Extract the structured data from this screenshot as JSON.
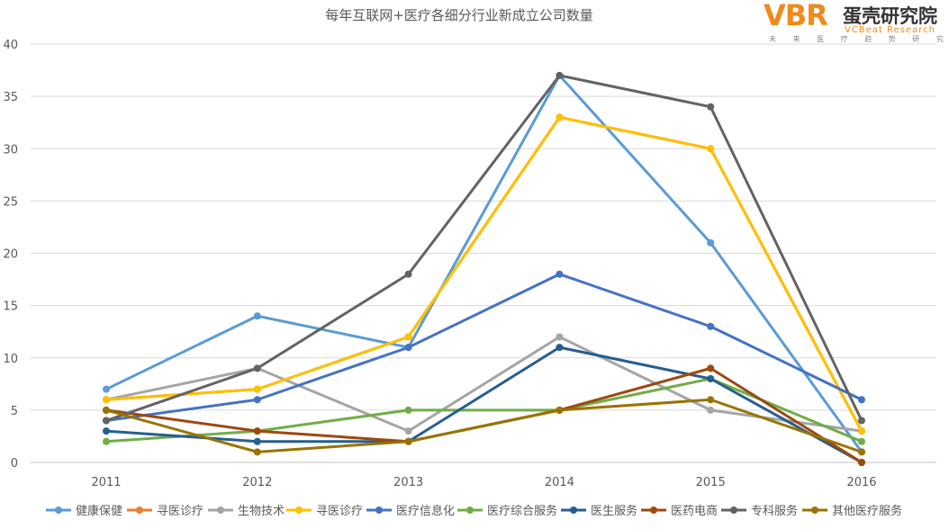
{
  "brand": {
    "mark": "VBR",
    "name_cn": "蛋壳研究院",
    "name_en": "VCBeat Research",
    "tagline": "未 来 医 疗 趋 势 研 究",
    "colors": {
      "accent": "#F08A1C",
      "text": "#333333"
    }
  },
  "chart_data": {
    "type": "line",
    "title": "每年互联网+医疗各细分行业新成立公司数量",
    "xlabel": "",
    "ylabel": "",
    "categories": [
      "2011",
      "2012",
      "2013",
      "2014",
      "2015",
      "2016"
    ],
    "ylim": [
      0,
      40
    ],
    "yticks": [
      0,
      5,
      10,
      15,
      20,
      25,
      30,
      35,
      40
    ],
    "grid": true,
    "legend_position": "bottom",
    "series": [
      {
        "name": "健康保健",
        "color": "#5B9BD5",
        "values": [
          7,
          14,
          11,
          37,
          21,
          1
        ]
      },
      {
        "name": "寻医诊疗",
        "color": "#ED7D31",
        "values": [
          6,
          7,
          12,
          33,
          30,
          3
        ]
      },
      {
        "name": "生物技术",
        "color": "#A5A5A5",
        "values": [
          6,
          9,
          3,
          12,
          5,
          3
        ]
      },
      {
        "name": "寻医诊疗",
        "color": "#FFC000",
        "values": [
          6,
          7,
          12,
          33,
          30,
          3
        ]
      },
      {
        "name": "医疗信息化",
        "color": "#4472C4",
        "values": [
          4,
          6,
          11,
          18,
          13,
          6
        ]
      },
      {
        "name": "医疗综合服务",
        "color": "#70AD47",
        "values": [
          2,
          3,
          5,
          5,
          8,
          2
        ]
      },
      {
        "name": "医生服务",
        "color": "#255E91",
        "values": [
          3,
          2,
          2,
          11,
          8,
          0
        ]
      },
      {
        "name": "医药电商",
        "color": "#9E480E",
        "values": [
          5,
          3,
          2,
          5,
          9,
          0
        ]
      },
      {
        "name": "专科服务",
        "color": "#636363",
        "values": [
          4,
          9,
          18,
          37,
          34,
          4
        ]
      },
      {
        "name": "其他医疗服务",
        "color": "#997300",
        "values": [
          5,
          1,
          2,
          5,
          6,
          1
        ]
      }
    ]
  }
}
